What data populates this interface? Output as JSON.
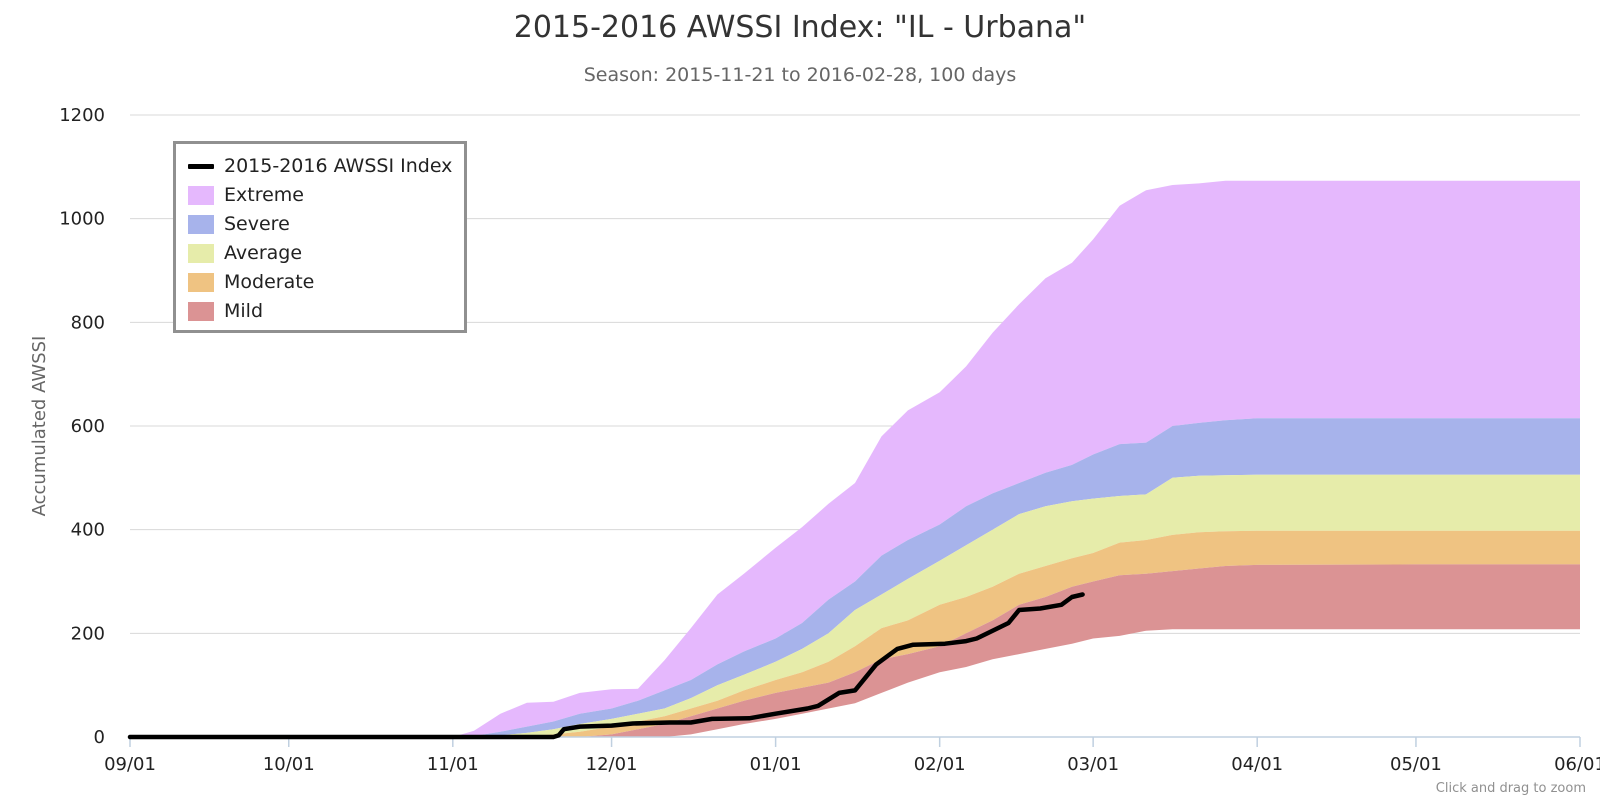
{
  "chart_data": {
    "type": "area",
    "title": "2015-2016 AWSSI Index: \"IL - Urbana\"",
    "subtitle": "Season: 2015-11-21 to 2016-02-28, 100 days",
    "ylabel": "Accumulated AWSSI",
    "xlabel": "",
    "ylim": [
      0,
      1200
    ],
    "yticks": [
      0,
      200,
      400,
      600,
      800,
      1000,
      1200
    ],
    "xlim": [
      "2015-09-01",
      "2016-06-01"
    ],
    "xticks": [
      "09/01",
      "10/01",
      "11/01",
      "12/01",
      "01/01",
      "02/01",
      "03/01",
      "04/01",
      "05/01",
      "06/01"
    ],
    "grid": true,
    "legend_position": "top-left",
    "credit": "Click and drag to zoom",
    "band_dates": [
      "2015-09-01",
      "2015-10-15",
      "2015-11-01",
      "2015-11-05",
      "2015-11-10",
      "2015-11-15",
      "2015-11-20",
      "2015-11-25",
      "2015-12-01",
      "2015-12-06",
      "2015-12-11",
      "2015-12-16",
      "2015-12-21",
      "2015-12-26",
      "2016-01-01",
      "2016-01-06",
      "2016-01-11",
      "2016-01-16",
      "2016-01-21",
      "2016-01-26",
      "2016-02-01",
      "2016-02-06",
      "2016-02-11",
      "2016-02-16",
      "2016-02-21",
      "2016-02-26",
      "2016-03-01",
      "2016-03-06",
      "2016-03-11",
      "2016-03-16",
      "2016-03-21",
      "2016-03-26",
      "2016-04-01",
      "2016-05-01",
      "2016-06-01"
    ],
    "bands": [
      {
        "name": "Extreme",
        "color": "#e5b8fd",
        "low": [
          0,
          0,
          0,
          2,
          10,
          20,
          30,
          45,
          55,
          70,
          90,
          110,
          140,
          165,
          190,
          220,
          265,
          300,
          350,
          380,
          410,
          445,
          470,
          490,
          510,
          525,
          545,
          565,
          568,
          600,
          606,
          611,
          615,
          615,
          615
        ],
        "high": [
          0,
          0,
          0,
          12,
          45,
          66,
          68,
          85,
          92,
          93,
          148,
          210,
          275,
          315,
          365,
          405,
          450,
          490,
          580,
          630,
          665,
          715,
          780,
          835,
          885,
          915,
          960,
          1025,
          1055,
          1065,
          1068,
          1073,
          1073,
          1073,
          1073
        ]
      },
      {
        "name": "Severe",
        "color": "#a7b3eb",
        "low": [
          0,
          0,
          0,
          0,
          3,
          8,
          15,
          25,
          35,
          45,
          55,
          75,
          100,
          120,
          145,
          170,
          200,
          245,
          275,
          305,
          340,
          370,
          400,
          430,
          445,
          455,
          460,
          465,
          468,
          500,
          504,
          505,
          506,
          506,
          506
        ],
        "high": [
          0,
          0,
          0,
          2,
          10,
          20,
          30,
          45,
          55,
          70,
          90,
          110,
          140,
          165,
          190,
          220,
          265,
          300,
          350,
          380,
          410,
          445,
          470,
          490,
          510,
          525,
          545,
          565,
          568,
          600,
          606,
          611,
          615,
          615,
          615
        ]
      },
      {
        "name": "Average",
        "color": "#e6ecaa",
        "low": [
          0,
          0,
          0,
          0,
          0,
          2,
          5,
          10,
          20,
          30,
          40,
          55,
          70,
          90,
          110,
          125,
          145,
          175,
          210,
          225,
          255,
          270,
          290,
          315,
          330,
          345,
          355,
          375,
          380,
          390,
          395,
          397,
          398,
          398,
          398
        ],
        "high": [
          0,
          0,
          0,
          0,
          3,
          8,
          15,
          25,
          35,
          45,
          55,
          75,
          100,
          120,
          145,
          170,
          200,
          245,
          275,
          305,
          340,
          370,
          400,
          430,
          445,
          455,
          460,
          465,
          468,
          500,
          504,
          505,
          506,
          506,
          506
        ]
      },
      {
        "name": "Moderate",
        "color": "#efc382",
        "low": [
          0,
          0,
          0,
          0,
          0,
          0,
          0,
          0,
          5,
          15,
          25,
          40,
          55,
          70,
          85,
          95,
          105,
          125,
          150,
          160,
          175,
          200,
          225,
          255,
          270,
          290,
          300,
          312,
          315,
          320,
          325,
          330,
          332,
          333,
          333
        ],
        "high": [
          0,
          0,
          0,
          0,
          0,
          2,
          5,
          10,
          20,
          30,
          40,
          55,
          70,
          90,
          110,
          125,
          145,
          175,
          210,
          225,
          255,
          270,
          290,
          315,
          330,
          345,
          355,
          375,
          380,
          390,
          395,
          397,
          398,
          398,
          398
        ]
      },
      {
        "name": "Mild",
        "color": "#db9394",
        "low": [
          0,
          0,
          0,
          0,
          0,
          0,
          0,
          0,
          0,
          0,
          0,
          5,
          15,
          25,
          35,
          45,
          55,
          65,
          85,
          105,
          125,
          135,
          150,
          160,
          170,
          180,
          190,
          195,
          205,
          208,
          208,
          208,
          208,
          208,
          208
        ],
        "high": [
          0,
          0,
          0,
          0,
          0,
          0,
          0,
          0,
          5,
          15,
          25,
          40,
          55,
          70,
          85,
          95,
          105,
          125,
          150,
          160,
          175,
          200,
          225,
          255,
          270,
          290,
          300,
          312,
          315,
          320,
          325,
          330,
          332,
          333,
          333
        ]
      }
    ],
    "series": [
      {
        "name": "2015-2016 AWSSI Index",
        "color": "#000000",
        "x": [
          "2015-09-01",
          "2015-11-20",
          "2015-11-21",
          "2015-11-22",
          "2015-11-25",
          "2015-12-01",
          "2015-12-05",
          "2015-12-12",
          "2015-12-16",
          "2015-12-20",
          "2015-12-27",
          "2016-01-01",
          "2016-01-07",
          "2016-01-09",
          "2016-01-13",
          "2016-01-16",
          "2016-01-20",
          "2016-01-24",
          "2016-01-27",
          "2016-02-02",
          "2016-02-06",
          "2016-02-08",
          "2016-02-14",
          "2016-02-16",
          "2016-02-20",
          "2016-02-24",
          "2016-02-26",
          "2016-02-28"
        ],
        "y": [
          0,
          0,
          3,
          15,
          20,
          22,
          26,
          28,
          28,
          35,
          36,
          45,
          55,
          60,
          85,
          90,
          140,
          170,
          178,
          180,
          185,
          190,
          220,
          245,
          248,
          255,
          270,
          275
        ]
      }
    ]
  }
}
